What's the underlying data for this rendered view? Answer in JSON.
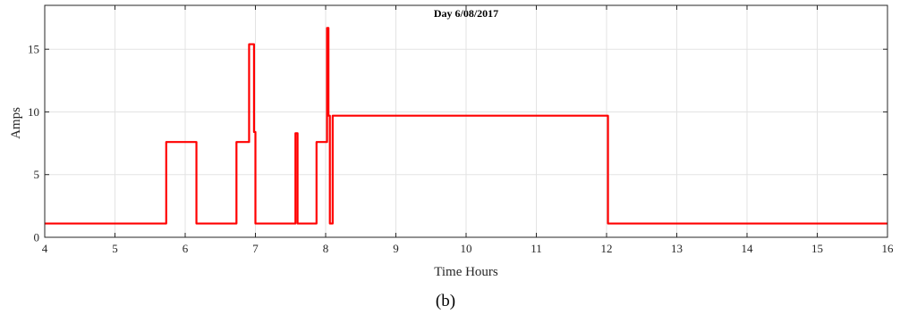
{
  "chart_data": {
    "type": "line",
    "title": "Day 6/08/2017",
    "xlabel": "Time Hours",
    "ylabel": "Amps",
    "caption": "(b)",
    "xlim": [
      4,
      16
    ],
    "ylim": [
      0,
      18.5
    ],
    "xticks": [
      4,
      5,
      6,
      7,
      8,
      9,
      10,
      11,
      12,
      13,
      14,
      15,
      16
    ],
    "yticks": [
      0,
      5,
      10,
      15
    ],
    "grid": true,
    "legend": "none",
    "series": [
      {
        "color": "#ff0000",
        "x": [
          4,
          5.73,
          5.73,
          6.16,
          6.16,
          6.73,
          6.73,
          6.91,
          6.91,
          6.98,
          6.98,
          7.0,
          7.0,
          7.57,
          7.57,
          7.6,
          7.6,
          7.87,
          7.87,
          8.02,
          8.02,
          8.04,
          8.04,
          8.06,
          8.06,
          8.1,
          8.1,
          12.02,
          12.02,
          12.05,
          12.05,
          16
        ],
        "y": [
          1.1,
          1.1,
          7.6,
          7.6,
          1.1,
          1.1,
          7.6,
          7.6,
          15.4,
          15.4,
          8.4,
          8.4,
          1.1,
          1.1,
          8.3,
          8.3,
          1.1,
          1.1,
          7.6,
          7.6,
          16.7,
          16.7,
          9.7,
          9.7,
          1.1,
          1.1,
          9.7,
          9.7,
          1.1,
          1.1,
          1.1,
          1.1
        ]
      }
    ]
  }
}
